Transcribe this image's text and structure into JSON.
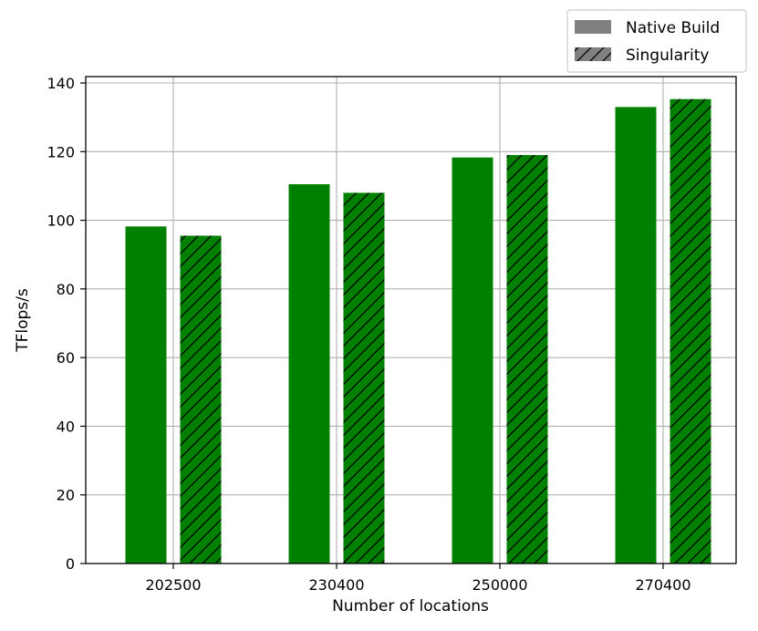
{
  "chart_data": {
    "type": "bar",
    "categories": [
      "202500",
      "230400",
      "250000",
      "270400"
    ],
    "series": [
      {
        "name": "Native Build",
        "values": [
          98.2,
          110.5,
          118.3,
          133.0
        ],
        "color": "#008000",
        "hatch": false
      },
      {
        "name": "Singularity",
        "values": [
          95.5,
          108.0,
          119.0,
          135.3
        ],
        "color": "#008000",
        "hatch": true
      }
    ],
    "xlabel": "Number of locations",
    "ylabel": "TFlops/s",
    "ylim": [
      0,
      140
    ],
    "yticks": [
      0,
      20,
      40,
      60,
      80,
      100,
      120,
      140
    ],
    "grid": true,
    "legend_position": "top-right (outside plot)",
    "legend_swatch_color": "#808080"
  }
}
